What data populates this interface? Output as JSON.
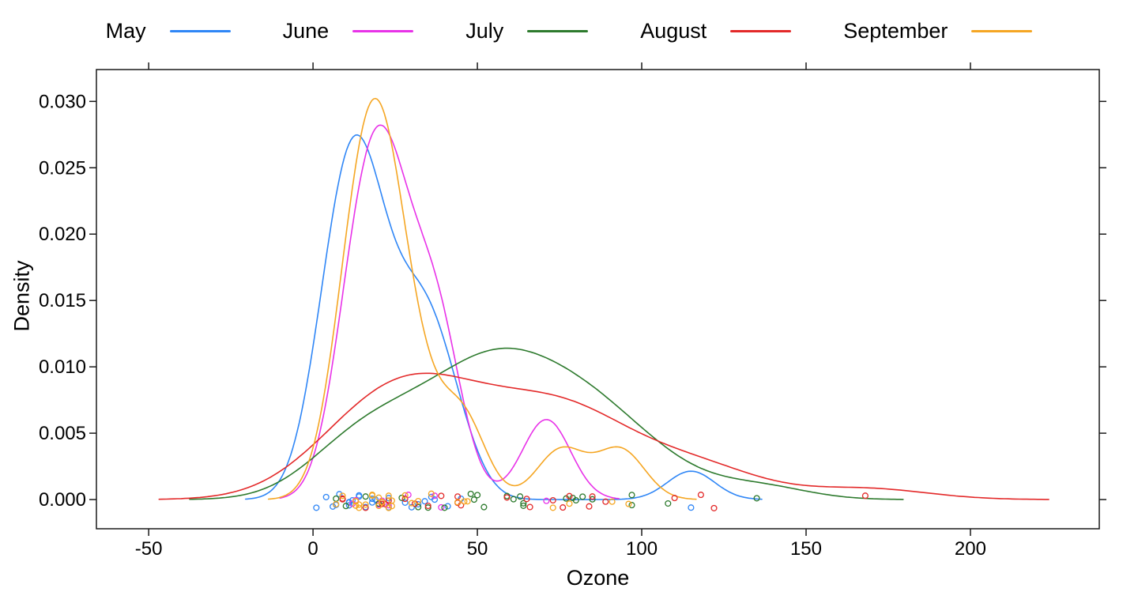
{
  "figure": {
    "background": "#ffffff",
    "frame_color": "#1a1a1a",
    "title": ""
  },
  "axes": {
    "x": {
      "title": "Ozone",
      "tick_labels": [
        "-50",
        "0",
        "50",
        "100",
        "150",
        "200"
      ],
      "tick_values": [
        -50,
        0,
        50,
        100,
        150,
        200
      ]
    },
    "y": {
      "title": "Density",
      "tick_labels": [
        "0.000",
        "0.005",
        "0.010",
        "0.015",
        "0.020",
        "0.025",
        "0.030"
      ],
      "tick_values": [
        0,
        0.005,
        0.01,
        0.015,
        0.02,
        0.025,
        0.03
      ]
    }
  },
  "chart_data": {
    "type": "line",
    "subtype": "kernel-density-plot",
    "title": "",
    "xlabel": "Ozone",
    "ylabel": "Density",
    "xlim": [
      -65.9,
      239.2
    ],
    "ylim": [
      -0.0022,
      0.0324
    ],
    "grid": false,
    "legend_position": "top",
    "kernel": "gaussian",
    "bandwidth_rule": "nrd0",
    "rug_points": "open circles of each group's raw values, vertically jittered around density 0",
    "series": [
      {
        "name": "May",
        "color": "#2F86F6",
        "bandwidth": 7.18,
        "peak": {
          "x": 13,
          "density": 0.0275
        },
        "values": [
          41,
          36,
          12,
          18,
          28,
          23,
          19,
          8,
          7,
          16,
          11,
          14,
          18,
          14,
          34,
          6,
          30,
          11,
          1,
          11,
          4,
          32,
          23,
          45,
          115,
          37
        ]
      },
      {
        "name": "June",
        "color": "#E832E8",
        "bandwidth": 7.36,
        "peak": {
          "x": 20,
          "density": 0.0282
        },
        "values": [
          29,
          71,
          39,
          23,
          21,
          37,
          20,
          12,
          13
        ]
      },
      {
        "name": "July",
        "color": "#2D7A2D",
        "bandwidth": 14.82,
        "peak": {
          "x": 59,
          "density": 0.0114
        },
        "values": [
          135,
          49,
          32,
          64,
          40,
          77,
          97,
          97,
          85,
          10,
          27,
          7,
          48,
          35,
          61,
          79,
          63,
          16,
          80,
          108,
          20,
          52,
          82,
          50,
          64,
          59
        ]
      },
      {
        "name": "August",
        "color": "#E32929",
        "bandwidth": 18.62,
        "peak": {
          "x": 37,
          "density": 0.0095
        },
        "values": [
          39,
          9,
          16,
          78,
          35,
          66,
          122,
          89,
          110,
          44,
          28,
          65,
          22,
          59,
          23,
          31,
          44,
          21,
          9,
          45,
          168,
          73,
          76,
          118,
          84,
          85
        ]
      },
      {
        "name": "September",
        "color": "#F5A623",
        "bandwidth": 6.85,
        "peak": {
          "x": 19,
          "density": 0.0302
        },
        "values": [
          96,
          78,
          73,
          91,
          47,
          32,
          20,
          23,
          21,
          24,
          44,
          21,
          28,
          9,
          13,
          46,
          18,
          13,
          24,
          16,
          13,
          23,
          36,
          7,
          14,
          30,
          14,
          18,
          20
        ]
      }
    ]
  }
}
